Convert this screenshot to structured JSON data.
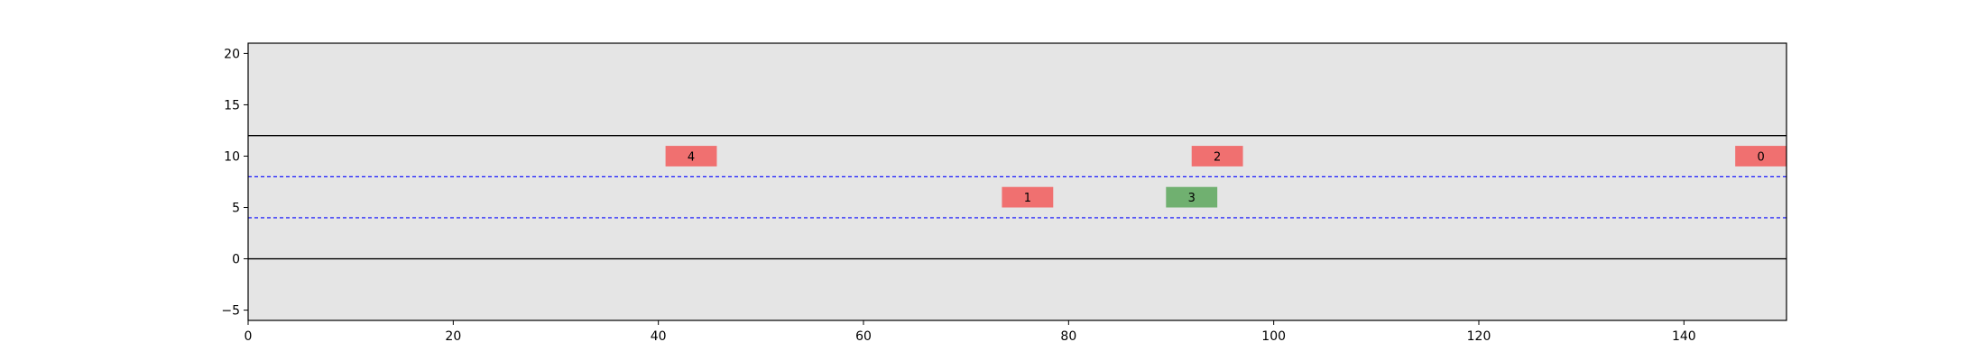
{
  "chart_data": {
    "type": "scatter",
    "title": "",
    "xlabel": "",
    "ylabel": "",
    "xlim": [
      0,
      150
    ],
    "ylim": [
      -6,
      21
    ],
    "xticks": [
      0,
      20,
      40,
      60,
      80,
      100,
      120,
      140
    ],
    "yticks": [
      -5,
      0,
      5,
      10,
      15,
      20
    ],
    "grid": false,
    "legend": "none",
    "colors": {
      "background": "#e5e5e5",
      "road_edge": "#000000",
      "lane_divider": "#0000ff",
      "vehicle_red": "#f07070",
      "vehicle_green": "#70b070"
    },
    "road_edges": [
      0,
      12
    ],
    "lane_dividers": [
      4,
      8
    ],
    "vehicles": [
      {
        "label": "0",
        "x": 147.5,
        "y": 10,
        "length": 5,
        "width": 2,
        "color": "red"
      },
      {
        "label": "1",
        "x": 76.0,
        "y": 6,
        "length": 5,
        "width": 2,
        "color": "red"
      },
      {
        "label": "2",
        "x": 94.5,
        "y": 10,
        "length": 5,
        "width": 2,
        "color": "red"
      },
      {
        "label": "3",
        "x": 92.0,
        "y": 6,
        "length": 5,
        "width": 2,
        "color": "green"
      },
      {
        "label": "4",
        "x": 43.2,
        "y": 10,
        "length": 5,
        "width": 2,
        "color": "red"
      }
    ]
  }
}
